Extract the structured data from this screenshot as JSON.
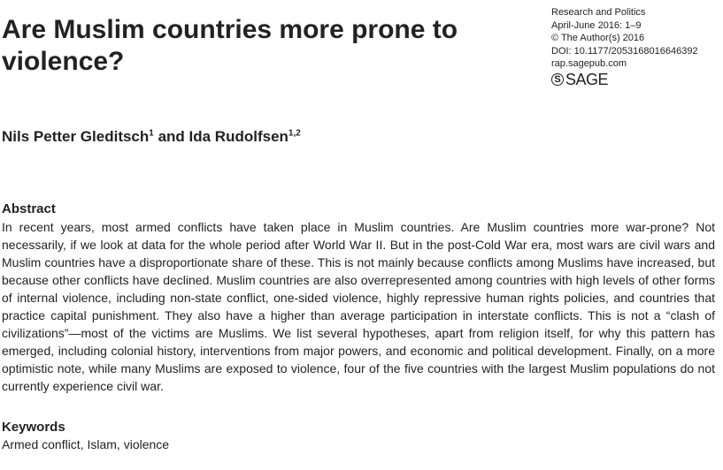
{
  "paper": {
    "title": "Are Muslim countries more prone to violence?",
    "journal": {
      "name": "Research and Politics",
      "issue": "April-June 2016: 1–9",
      "copyright": "© The Author(s) 2016",
      "doi": "DOI: 10.1177/2053168016646392",
      "url": "rap.sagepub.com",
      "publisher_logo": "SAGE"
    },
    "authors": {
      "author1": "Nils Petter Gleditsch",
      "author1_affil": "1",
      "conjunction": " and ",
      "author2": "Ida Rudolfsen",
      "author2_affil": "1,2"
    },
    "abstract": {
      "heading": "Abstract",
      "text": "In recent years, most armed conflicts have taken place in Muslim countries. Are Muslim countries more war-prone? Not necessarily, if we look at data for the whole period after World War II. But in the post-Cold War era, most wars are civil wars and Muslim countries have a disproportionate share of these. This is not mainly because conflicts among Muslims have increased, but because other conflicts have declined. Muslim countries are also overrepresented among countries with high levels of other forms of internal violence, including non-state conflict, one-sided violence, highly repressive human rights policies, and countries that practice capital punishment. They also have a higher than average participation in interstate conflicts. This is not a “clash of civilizations”—most of the victims are Muslims. We list several hypotheses, apart from religion itself, for why this pattern has emerged, including colonial history, interventions from major powers, and economic and political development. Finally, on a more optimistic note, while many Muslims are exposed to violence, four of the five countries with the largest Muslim populations do not currently experience civil war."
    },
    "keywords": {
      "heading": "Keywords",
      "text": "Armed conflict, Islam, violence"
    }
  }
}
